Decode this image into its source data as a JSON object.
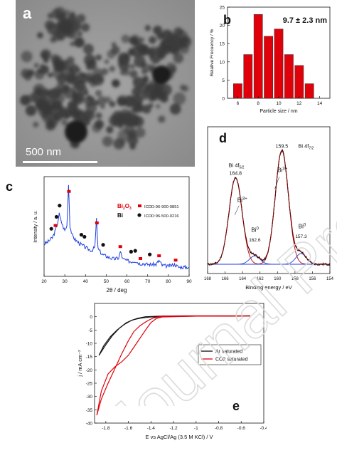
{
  "panels": {
    "a": {
      "label": "a",
      "scalebar": "500 nm"
    },
    "b": {
      "label": "b"
    },
    "c": {
      "label": "c"
    },
    "d": {
      "label": "d"
    },
    "e": {
      "label": "e"
    }
  },
  "watermark": "Journal Pre-proofs",
  "colors": {
    "red": "#e0000a",
    "blue": "#1f3fdd",
    "black": "#111111",
    "green": "#2ca02c",
    "darkred": "#8b0000",
    "tem_bg": "#8c8c8c"
  },
  "chart_data": [
    {
      "id": "b",
      "type": "bar",
      "annotation": "9.7 ± 2.3 nm",
      "xlabel": "Particle size / nm",
      "ylabel": "Relative Frecuency / %",
      "categories": [
        6,
        7,
        8,
        9,
        10,
        11,
        12,
        13,
        14
      ],
      "values": [
        4,
        12,
        23,
        17,
        19,
        12,
        9,
        4,
        0
      ],
      "bar_positions": [
        6,
        7,
        8,
        9,
        10,
        11,
        12,
        13,
        14
      ],
      "values_plotted": [
        4,
        12,
        23,
        17,
        19,
        12,
        9,
        4,
        0
      ],
      "ylim": [
        0,
        25
      ],
      "xlim": [
        5,
        15
      ],
      "yticks": [
        0,
        5,
        10,
        15,
        20,
        25
      ],
      "xticks": [
        6,
        8,
        10,
        12,
        14
      ]
    },
    {
      "id": "c",
      "type": "line",
      "xlabel": "2θ / deg",
      "ylabel": "Intensity / a. u.",
      "xlim": [
        20,
        90
      ],
      "xticks": [
        20,
        30,
        40,
        50,
        60,
        70,
        80,
        90
      ],
      "legend": [
        {
          "name": "Bi2O3",
          "marker": "square",
          "ref": "ICDD:96-900-9851"
        },
        {
          "name": "Bi",
          "marker": "circle",
          "ref": "ICDD:96-500-0216"
        }
      ],
      "series": [
        {
          "name": "pattern",
          "x": [
            20,
            22,
            24,
            25.5,
            26.5,
            27.3,
            28,
            29,
            30,
            31,
            31.8,
            32.5,
            33.5,
            35,
            37,
            39,
            41,
            43,
            44.5,
            45.3,
            46,
            48,
            50,
            52,
            54,
            56,
            56.8,
            58,
            60,
            62,
            64,
            66,
            68,
            70,
            72,
            74,
            75.5,
            77,
            80,
            83,
            85,
            88,
            90
          ],
          "y": [
            0.35,
            0.38,
            0.42,
            0.5,
            0.58,
            0.68,
            0.62,
            0.55,
            0.5,
            0.55,
            1.0,
            0.55,
            0.45,
            0.4,
            0.36,
            0.33,
            0.3,
            0.28,
            0.32,
            0.62,
            0.3,
            0.24,
            0.22,
            0.2,
            0.19,
            0.2,
            0.27,
            0.19,
            0.17,
            0.16,
            0.17,
            0.14,
            0.14,
            0.13,
            0.13,
            0.13,
            0.17,
            0.12,
            0.11,
            0.13,
            0.1,
            0.1,
            0.1
          ]
        }
      ],
      "bi2o3_peaks": [
        25.5,
        32,
        45.5,
        56.8,
        66.5,
        75.5,
        83.5
      ],
      "bi_peaks": [
        23.5,
        26,
        27.5,
        38,
        39.5,
        48.5,
        62,
        64,
        71
      ]
    },
    {
      "id": "d",
      "type": "line",
      "xlabel": "Binding energy / eV",
      "xlim": [
        168,
        154
      ],
      "xticks": [
        168,
        166,
        164,
        162,
        160,
        158,
        156,
        154
      ],
      "annotations": [
        {
          "text": "159.5",
          "x": 159.5
        },
        {
          "text": "Bi 4f7/2",
          "x": 157.8
        },
        {
          "text": "Bi 4f5/2",
          "x": 164.8
        },
        {
          "text": "164.8",
          "x": 164.8
        },
        {
          "text": "Bi3+",
          "x": 164.3
        },
        {
          "text": "Bi3+",
          "x": 159.2
        },
        {
          "text": "Bi0",
          "x": 162.6
        },
        {
          "text": "162.6",
          "x": 162.6
        },
        {
          "text": "Bi0",
          "x": 157.3
        },
        {
          "text": "157.3",
          "x": 157.3
        }
      ],
      "series": [
        {
          "name": "Bi3+ 4f5/2",
          "center": 164.8,
          "amp": 0.72,
          "width": 0.75
        },
        {
          "name": "Bi3+ 4f7/2",
          "center": 159.5,
          "amp": 0.95,
          "width": 0.75
        },
        {
          "name": "Bi0 4f5/2",
          "center": 162.6,
          "amp": 0.07,
          "width": 0.6
        },
        {
          "name": "Bi0 4f7/2",
          "center": 157.3,
          "amp": 0.09,
          "width": 0.6
        }
      ]
    },
    {
      "id": "e",
      "type": "line",
      "xlabel": "E vs AgCl/Ag (3.5 M KCl) / V",
      "ylabel": "j / mA cm⁻²",
      "xlim": [
        -1.9,
        -0.4
      ],
      "ylim": [
        -40,
        5
      ],
      "xticks": [
        -1.8,
        -1.6,
        -1.4,
        -1.2,
        -1.0,
        -0.8,
        -0.6,
        -0.4
      ],
      "yticks": [
        0,
        -5,
        -10,
        -15,
        -20,
        -25,
        -30,
        -35,
        -40
      ],
      "legend": [
        "Ar saturated",
        "CO2 saturated"
      ],
      "series": [
        {
          "name": "Ar saturated",
          "forward": {
            "x": [
              -1.86,
              -1.8,
              -1.74,
              -1.68,
              -1.62,
              -1.56,
              -1.5,
              -1.45,
              -1.4,
              -1.3,
              -1.2,
              -1.0,
              -0.8,
              -0.6,
              -0.52
            ],
            "y": [
              -14.5,
              -10.5,
              -7.0,
              -4.3,
              -2.3,
              -1.2,
              -0.6,
              -0.3,
              -0.1,
              0.0,
              0.1,
              0.2,
              0.2,
              0.25,
              0.3
            ]
          },
          "reverse": {
            "x": [
              -0.52,
              -0.8,
              -1.1,
              -1.3,
              -1.45,
              -1.52,
              -1.58,
              -1.64,
              -1.7,
              -1.76,
              -1.82,
              -1.86
            ],
            "y": [
              0.3,
              0.3,
              0.3,
              0.25,
              0.0,
              -0.6,
              -1.5,
              -3.0,
              -5.0,
              -7.5,
              -11,
              -14.5
            ]
          }
        },
        {
          "name": "CO2 saturated",
          "forward": {
            "x": [
              -1.88,
              -1.84,
              -1.78,
              -1.72,
              -1.66,
              -1.6,
              -1.56,
              -1.52,
              -1.48,
              -1.44,
              -1.4,
              -1.35,
              -1.3,
              -1.2,
              -1.0,
              -0.8,
              -0.6,
              -0.52
            ],
            "y": [
              -37,
              -28,
              -21.5,
              -18.8,
              -17,
              -14.5,
              -12,
              -9.5,
              -7.0,
              -4.5,
              -2.2,
              -0.6,
              -0.1,
              0.0,
              0.2,
              0.2,
              0.25,
              0.3
            ]
          },
          "reverse": {
            "x": [
              -0.52,
              -0.8,
              -1.1,
              -1.3,
              -1.38,
              -1.42,
              -1.46,
              -1.5,
              -1.55,
              -1.6,
              -1.66,
              -1.72,
              -1.78,
              -1.84,
              -1.88
            ],
            "y": [
              0.3,
              0.3,
              0.3,
              0.2,
              -0.5,
              -1.3,
              -2.3,
              -3.5,
              -5.5,
              -9,
              -14,
              -19.5,
              -25,
              -31,
              -37
            ]
          }
        }
      ]
    }
  ]
}
